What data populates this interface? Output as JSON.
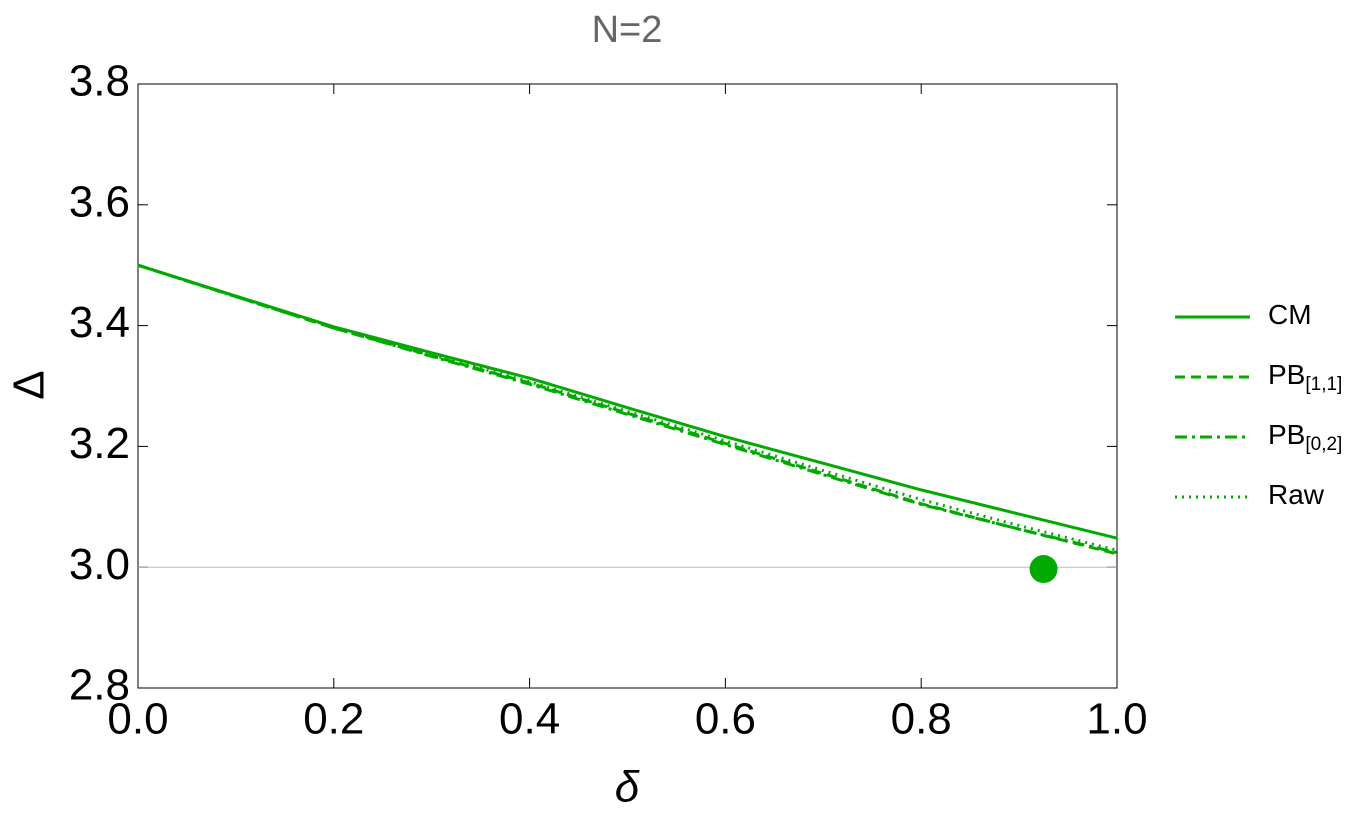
{
  "chart_data": {
    "type": "line",
    "title": "N=2",
    "x_label": "δ",
    "y_label": "Δ",
    "x": [
      0,
      0.1,
      0.2,
      0.3,
      0.4,
      0.5,
      0.6,
      0.7,
      0.8,
      0.9,
      1.0
    ],
    "series": [
      {
        "name": "CM",
        "color": "#00aa00",
        "dash": "solid",
        "values": [
          3.5,
          3.449,
          3.398,
          3.355,
          3.313,
          3.264,
          3.216,
          3.172,
          3.128,
          3.088,
          3.048
        ]
      },
      {
        "name": "PB",
        "name_sub": "[1,1]",
        "color": "#00aa00",
        "dash": "dashed",
        "values": [
          3.5,
          3.448,
          3.396,
          3.35,
          3.305,
          3.255,
          3.205,
          3.155,
          3.105,
          3.063,
          3.022
        ]
      },
      {
        "name": "PB",
        "name_sub": "[0,2]",
        "color": "#00aa00",
        "dash": "dashdot",
        "values": [
          3.5,
          3.448,
          3.396,
          3.349,
          3.303,
          3.253,
          3.203,
          3.153,
          3.104,
          3.063,
          3.024
        ]
      },
      {
        "name": "Raw",
        "color": "#00aa00",
        "dash": "dotted",
        "values": [
          3.5,
          3.448,
          3.397,
          3.352,
          3.307,
          3.258,
          3.209,
          3.16,
          3.112,
          3.069,
          3.028
        ]
      }
    ],
    "point": {
      "x": 0.925,
      "y": 2.997,
      "color": "#00aa00"
    },
    "reference_line": 3.0,
    "xlim": [
      0,
      1
    ],
    "ylim": [
      2.8,
      3.8
    ],
    "xticks": [
      {
        "value": 0,
        "label": "0.0"
      },
      0.2,
      0.4,
      0.6,
      0.8,
      {
        "value": 1,
        "label": "1.0"
      }
    ],
    "yticks": [
      2.8,
      {
        "value": 3,
        "label": "3.0"
      },
      3.2,
      3.4,
      3.6,
      3.8
    ],
    "legend": "right"
  }
}
